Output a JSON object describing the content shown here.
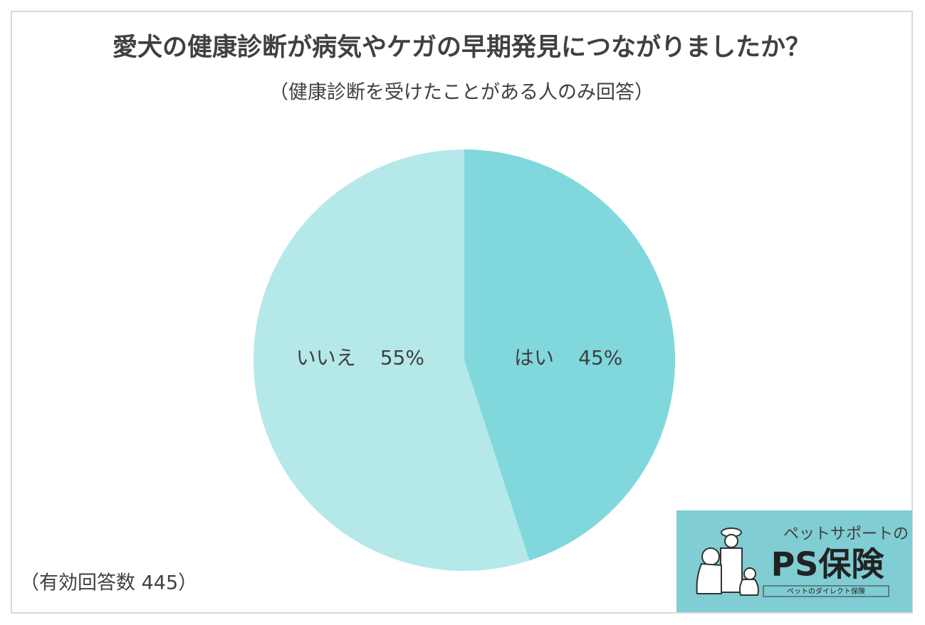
{
  "chart_data": {
    "type": "pie",
    "title": "愛犬の健康診断が病気やケガの早期発見につながりましたか？",
    "subtitle": "（健康診断を受けたことがある人のみ回答）",
    "categories": [
      "はい",
      "いいえ"
    ],
    "values": [
      45,
      55
    ],
    "value_labels": [
      "45%",
      "55%"
    ],
    "colors": [
      "#80d8dc",
      "#b5e8e9"
    ],
    "annotation": "（有効回答数 445）"
  },
  "logo": {
    "tagline": "ペットサポートの",
    "name": "PS保険",
    "subline": "ペットのダイレクト保険"
  }
}
